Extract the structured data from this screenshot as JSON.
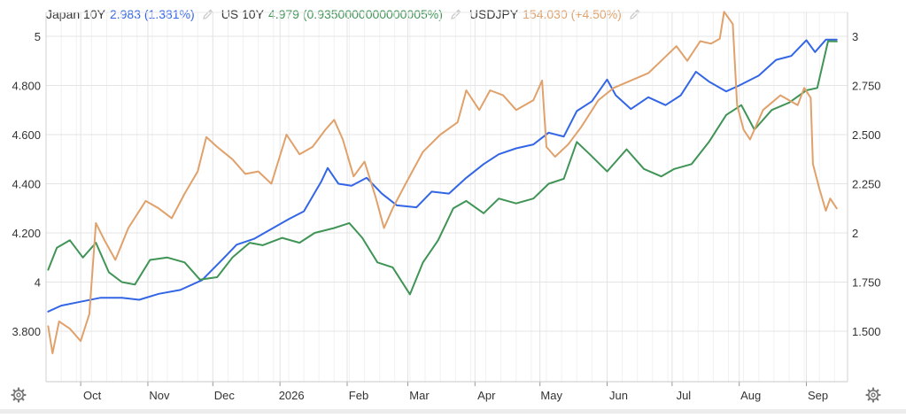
{
  "legend": [
    {
      "name": "Japan 10Y",
      "value": "2.983 (1.381%)",
      "color": "#3366e6"
    },
    {
      "name": "US 10Y",
      "value": "4.979 (0.9350000000000005%)",
      "color": "#3f9456"
    },
    {
      "name": "USDJPY",
      "value": "154.030 (+4.50%)",
      "color": "#e0a16b"
    }
  ],
  "icons": {
    "edit": "pencil-icon",
    "settings": "gear-icon"
  },
  "chart_data": {
    "type": "line",
    "grid": true,
    "x_range": [
      "2025-09-15",
      "2026-09-20"
    ],
    "x_ticks": [
      {
        "label": "Oct",
        "date": "2025-10-01"
      },
      {
        "label": "Nov",
        "date": "2025-11-01"
      },
      {
        "label": "Dec",
        "date": "2025-12-01"
      },
      {
        "label": "2026",
        "date": "2026-01-01"
      },
      {
        "label": "Feb",
        "date": "2026-02-01"
      },
      {
        "label": "Mar",
        "date": "2026-03-01"
      },
      {
        "label": "Apr",
        "date": "2026-04-01"
      },
      {
        "label": "May",
        "date": "2026-05-01"
      },
      {
        "label": "Jun",
        "date": "2026-06-01"
      },
      {
        "label": "Jul",
        "date": "2026-07-01"
      },
      {
        "label": "Aug",
        "date": "2026-08-01"
      },
      {
        "label": "Sep",
        "date": "2026-09-01"
      }
    ],
    "left_axis": {
      "range": [
        3.8,
        5.0
      ],
      "ticks": [
        {
          "label": "5",
          "value": 5.0
        },
        {
          "label": "4.800",
          "value": 4.8
        },
        {
          "label": "4.600",
          "value": 4.6
        },
        {
          "label": "4.400",
          "value": 4.4
        },
        {
          "label": "4.200",
          "value": 4.2
        },
        {
          "label": "4",
          "value": 4.0
        },
        {
          "label": "3.800",
          "value": 3.8
        }
      ]
    },
    "right_axis": {
      "range": [
        1.5,
        3.0
      ],
      "ticks": [
        {
          "label": "3",
          "value": 3.0
        },
        {
          "label": "2.750",
          "value": 2.75
        },
        {
          "label": "2.500",
          "value": 2.5
        },
        {
          "label": "2.250",
          "value": 2.25
        },
        {
          "label": "2",
          "value": 2.0
        },
        {
          "label": "1.750",
          "value": 1.75
        },
        {
          "label": "1.500",
          "value": 1.5
        }
      ]
    },
    "series": [
      {
        "name": "Japan 10Y",
        "axis": "right",
        "color": "#3366e6",
        "points": [
          [
            "2025-09-16",
            1.6
          ],
          [
            "2025-09-22",
            1.63
          ],
          [
            "2025-10-01",
            1.65
          ],
          [
            "2025-10-10",
            1.67
          ],
          [
            "2025-10-20",
            1.67
          ],
          [
            "2025-10-28",
            1.66
          ],
          [
            "2025-11-06",
            1.69
          ],
          [
            "2025-11-16",
            1.71
          ],
          [
            "2025-11-26",
            1.76
          ],
          [
            "2025-12-05",
            1.86
          ],
          [
            "2025-12-12",
            1.94
          ],
          [
            "2025-12-20",
            1.97
          ],
          [
            "2026-01-05",
            2.07
          ],
          [
            "2026-01-12",
            2.11
          ],
          [
            "2026-01-20",
            2.26
          ],
          [
            "2026-01-23",
            2.33
          ],
          [
            "2026-01-28",
            2.25
          ],
          [
            "2026-02-03",
            2.24
          ],
          [
            "2026-02-10",
            2.28
          ],
          [
            "2026-02-17",
            2.2
          ],
          [
            "2026-02-24",
            2.14
          ],
          [
            "2026-03-05",
            2.13
          ],
          [
            "2026-03-12",
            2.21
          ],
          [
            "2026-03-20",
            2.2
          ],
          [
            "2026-03-28",
            2.28
          ],
          [
            "2026-04-05",
            2.35
          ],
          [
            "2026-04-12",
            2.4
          ],
          [
            "2026-04-20",
            2.43
          ],
          [
            "2026-04-28",
            2.45
          ],
          [
            "2026-05-05",
            2.51
          ],
          [
            "2026-05-12",
            2.49
          ],
          [
            "2026-05-18",
            2.62
          ],
          [
            "2026-05-25",
            2.67
          ],
          [
            "2026-06-01",
            2.78
          ],
          [
            "2026-06-05",
            2.7
          ],
          [
            "2026-06-12",
            2.63
          ],
          [
            "2026-06-20",
            2.69
          ],
          [
            "2026-06-28",
            2.65
          ],
          [
            "2026-07-05",
            2.7
          ],
          [
            "2026-07-12",
            2.82
          ],
          [
            "2026-07-18",
            2.77
          ],
          [
            "2026-07-26",
            2.72
          ],
          [
            "2026-08-01",
            2.75
          ],
          [
            "2026-08-10",
            2.8
          ],
          [
            "2026-08-18",
            2.88
          ],
          [
            "2026-08-25",
            2.9
          ],
          [
            "2026-09-01",
            2.98
          ],
          [
            "2026-09-05",
            2.92
          ],
          [
            "2026-09-10",
            2.983
          ],
          [
            "2026-09-15",
            2.983
          ]
        ]
      },
      {
        "name": "US 10Y",
        "axis": "left",
        "color": "#3f9456",
        "points": [
          [
            "2025-09-16",
            4.05
          ],
          [
            "2025-09-20",
            4.14
          ],
          [
            "2025-09-26",
            4.17
          ],
          [
            "2025-10-02",
            4.1
          ],
          [
            "2025-10-08",
            4.16
          ],
          [
            "2025-10-14",
            4.04
          ],
          [
            "2025-10-20",
            4.0
          ],
          [
            "2025-10-26",
            3.99
          ],
          [
            "2025-11-02",
            4.09
          ],
          [
            "2025-11-10",
            4.1
          ],
          [
            "2025-11-18",
            4.08
          ],
          [
            "2025-11-25",
            4.01
          ],
          [
            "2025-12-03",
            4.02
          ],
          [
            "2025-12-10",
            4.1
          ],
          [
            "2025-12-18",
            4.16
          ],
          [
            "2025-12-24",
            4.15
          ],
          [
            "2026-01-02",
            4.18
          ],
          [
            "2026-01-10",
            4.16
          ],
          [
            "2026-01-17",
            4.2
          ],
          [
            "2026-01-26",
            4.22
          ],
          [
            "2026-02-02",
            4.24
          ],
          [
            "2026-02-08",
            4.18
          ],
          [
            "2026-02-15",
            4.08
          ],
          [
            "2026-02-22",
            4.06
          ],
          [
            "2026-03-02",
            3.95
          ],
          [
            "2026-03-08",
            4.08
          ],
          [
            "2026-03-15",
            4.17
          ],
          [
            "2026-03-22",
            4.3
          ],
          [
            "2026-03-28",
            4.33
          ],
          [
            "2026-04-05",
            4.28
          ],
          [
            "2026-04-12",
            4.34
          ],
          [
            "2026-04-20",
            4.32
          ],
          [
            "2026-04-28",
            4.34
          ],
          [
            "2026-05-05",
            4.4
          ],
          [
            "2026-05-12",
            4.42
          ],
          [
            "2026-05-18",
            4.57
          ],
          [
            "2026-05-24",
            4.52
          ],
          [
            "2026-06-01",
            4.45
          ],
          [
            "2026-06-10",
            4.54
          ],
          [
            "2026-06-18",
            4.46
          ],
          [
            "2026-06-26",
            4.43
          ],
          [
            "2026-07-02",
            4.46
          ],
          [
            "2026-07-10",
            4.48
          ],
          [
            "2026-07-18",
            4.57
          ],
          [
            "2026-07-26",
            4.68
          ],
          [
            "2026-08-02",
            4.72
          ],
          [
            "2026-08-08",
            4.62
          ],
          [
            "2026-08-16",
            4.7
          ],
          [
            "2026-08-24",
            4.73
          ],
          [
            "2026-09-01",
            4.78
          ],
          [
            "2026-09-06",
            4.79
          ],
          [
            "2026-09-11",
            4.98
          ],
          [
            "2026-09-15",
            4.979
          ]
        ]
      },
      {
        "name": "USDJPY",
        "axis": "left",
        "color": "#e0a16b",
        "points": [
          [
            "2025-09-16",
            3.82
          ],
          [
            "2025-09-18",
            3.71
          ],
          [
            "2025-09-21",
            3.84
          ],
          [
            "2025-09-26",
            3.81
          ],
          [
            "2025-10-01",
            3.76
          ],
          [
            "2025-10-05",
            3.87
          ],
          [
            "2025-10-08",
            4.24
          ],
          [
            "2025-10-12",
            4.17
          ],
          [
            "2025-10-17",
            4.09
          ],
          [
            "2025-10-23",
            4.22
          ],
          [
            "2025-10-31",
            4.33
          ],
          [
            "2025-11-06",
            4.3
          ],
          [
            "2025-11-12",
            4.26
          ],
          [
            "2025-11-18",
            4.36
          ],
          [
            "2025-11-24",
            4.45
          ],
          [
            "2025-11-28",
            4.59
          ],
          [
            "2025-12-03",
            4.55
          ],
          [
            "2025-12-10",
            4.5
          ],
          [
            "2025-12-16",
            4.44
          ],
          [
            "2025-12-22",
            4.45
          ],
          [
            "2025-12-28",
            4.4
          ],
          [
            "2026-01-04",
            4.6
          ],
          [
            "2026-01-10",
            4.52
          ],
          [
            "2026-01-16",
            4.55
          ],
          [
            "2026-01-22",
            4.62
          ],
          [
            "2026-01-26",
            4.66
          ],
          [
            "2026-01-30",
            4.58
          ],
          [
            "2026-02-04",
            4.43
          ],
          [
            "2026-02-09",
            4.49
          ],
          [
            "2026-02-14",
            4.35
          ],
          [
            "2026-02-18",
            4.22
          ],
          [
            "2026-02-22",
            4.3
          ],
          [
            "2026-02-28",
            4.4
          ],
          [
            "2026-03-08",
            4.53
          ],
          [
            "2026-03-16",
            4.6
          ],
          [
            "2026-03-24",
            4.65
          ],
          [
            "2026-03-28",
            4.78
          ],
          [
            "2026-04-03",
            4.7
          ],
          [
            "2026-04-08",
            4.78
          ],
          [
            "2026-04-14",
            4.76
          ],
          [
            "2026-04-20",
            4.7
          ],
          [
            "2026-04-28",
            4.74
          ],
          [
            "2026-05-02",
            4.82
          ],
          [
            "2026-05-04",
            4.55
          ],
          [
            "2026-05-08",
            4.51
          ],
          [
            "2026-05-14",
            4.56
          ],
          [
            "2026-05-20",
            4.63
          ],
          [
            "2026-05-28",
            4.74
          ],
          [
            "2026-06-04",
            4.79
          ],
          [
            "2026-06-12",
            4.82
          ],
          [
            "2026-06-20",
            4.85
          ],
          [
            "2026-06-26",
            4.9
          ],
          [
            "2026-07-03",
            4.96
          ],
          [
            "2026-07-08",
            4.9
          ],
          [
            "2026-07-14",
            4.98
          ],
          [
            "2026-07-19",
            4.97
          ],
          [
            "2026-07-23",
            4.99
          ],
          [
            "2026-07-25",
            5.1
          ],
          [
            "2026-07-29",
            5.05
          ],
          [
            "2026-07-31",
            4.72
          ],
          [
            "2026-08-03",
            4.62
          ],
          [
            "2026-08-06",
            4.58
          ],
          [
            "2026-08-12",
            4.7
          ],
          [
            "2026-08-20",
            4.76
          ],
          [
            "2026-08-28",
            4.72
          ],
          [
            "2026-08-31",
            4.79
          ],
          [
            "2026-09-03",
            4.75
          ],
          [
            "2026-09-04",
            4.48
          ],
          [
            "2026-09-07",
            4.38
          ],
          [
            "2026-09-10",
            4.29
          ],
          [
            "2026-09-12",
            4.34
          ],
          [
            "2026-09-15",
            4.3
          ]
        ]
      }
    ]
  }
}
